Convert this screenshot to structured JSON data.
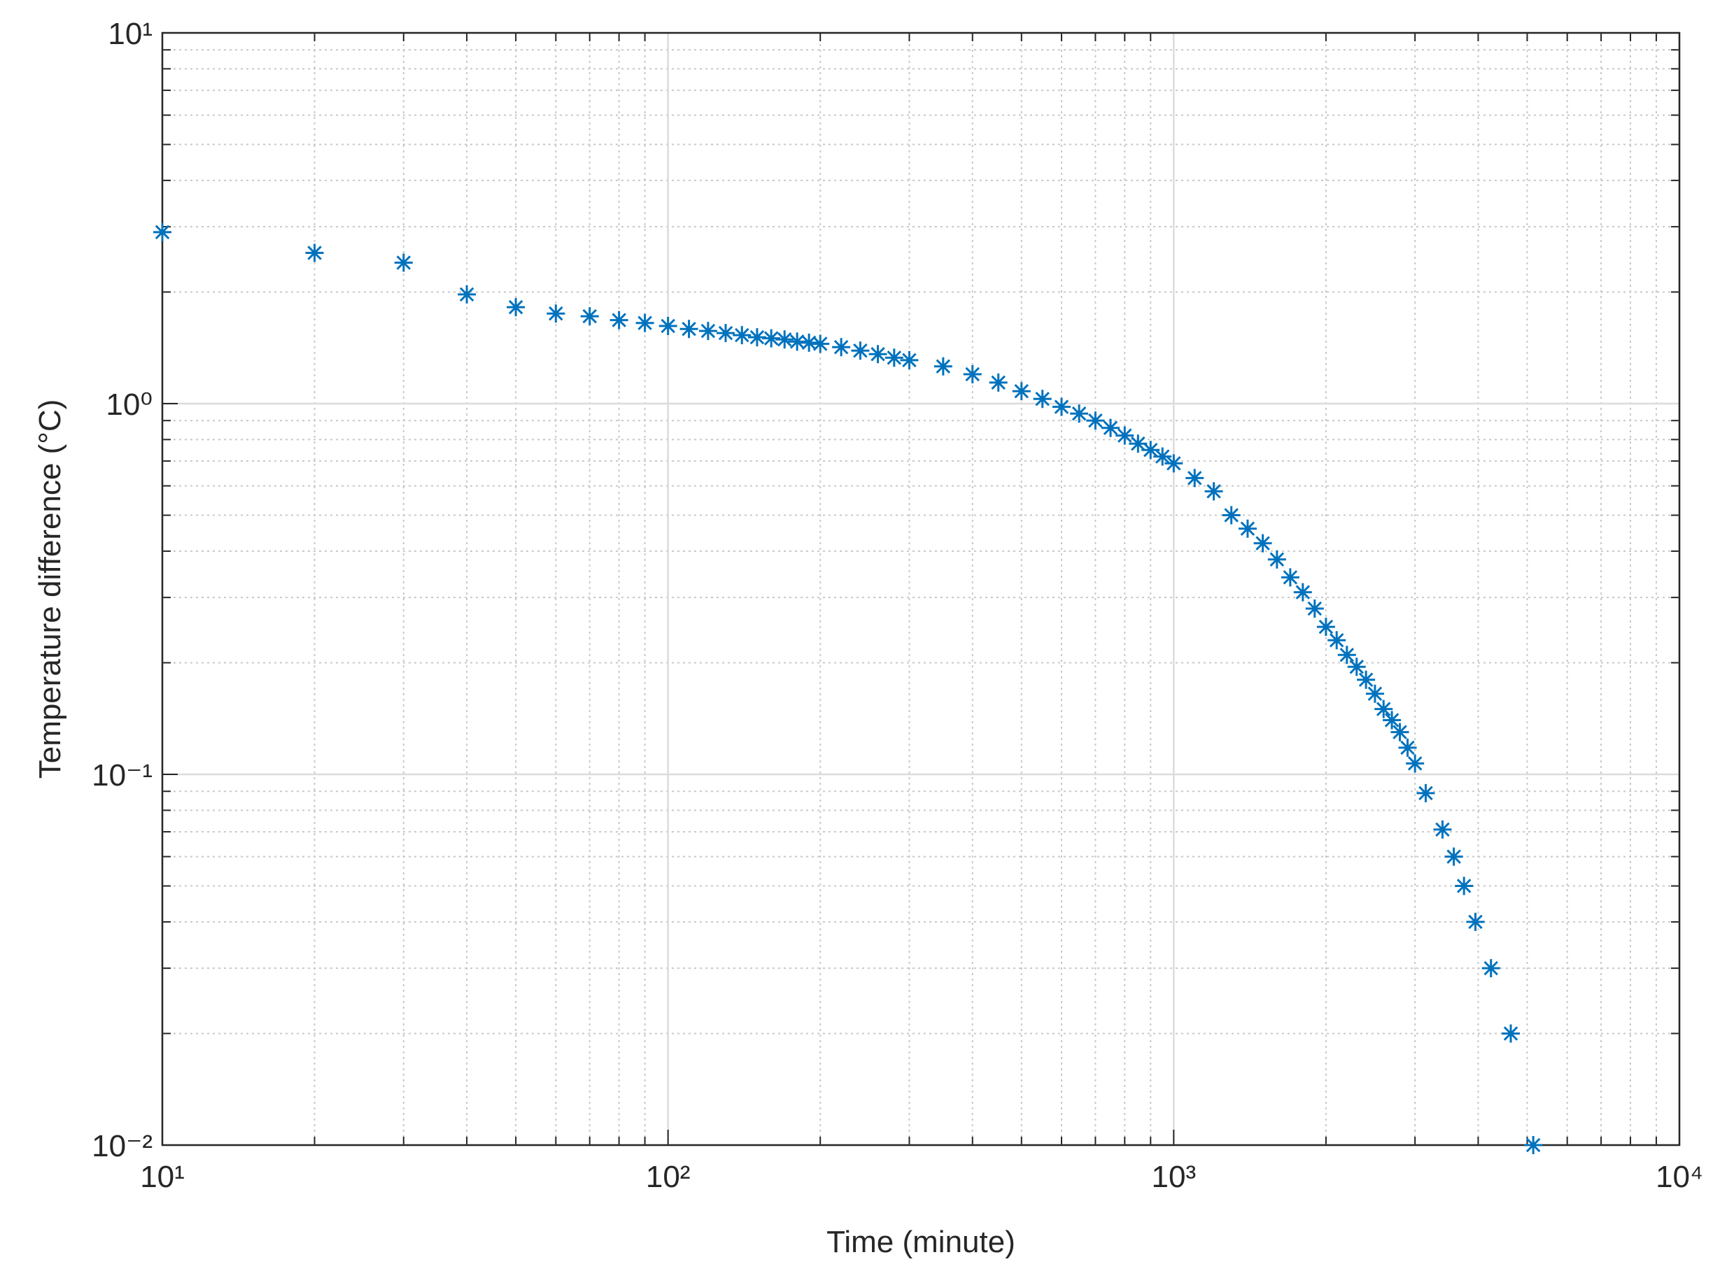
{
  "chart_data": {
    "type": "scatter",
    "x_label": "Time (minute)",
    "y_label": "Temperature difference (°C)",
    "x_log": true,
    "y_log": true,
    "grid": true,
    "minor_grid": true,
    "marker": "asterisk",
    "color": "#0072bd",
    "xlim": [
      10,
      10000
    ],
    "xticks": [
      {
        "value": 10,
        "label": "10¹"
      },
      {
        "value": 100,
        "label": "10²"
      },
      {
        "value": 1000,
        "label": "10³"
      },
      {
        "value": 10000,
        "label": "10⁴"
      }
    ],
    "ylim": [
      0.01,
      10
    ],
    "yticks": [
      {
        "value": 0.01,
        "label": "10⁻²"
      },
      {
        "value": 0.1,
        "label": "10⁻¹"
      },
      {
        "value": 1,
        "label": "10⁰"
      },
      {
        "value": 10,
        "label": "10¹"
      }
    ],
    "x": [
      10,
      20,
      30,
      40,
      50,
      60,
      70,
      80,
      90,
      100,
      110,
      120,
      130,
      140,
      150,
      160,
      170,
      180,
      190,
      200,
      220,
      240,
      260,
      280,
      300,
      350,
      400,
      450,
      500,
      550,
      600,
      650,
      700,
      750,
      800,
      850,
      900,
      950,
      1000,
      1100,
      1200,
      1300,
      1400,
      1500,
      1600,
      1700,
      1800,
      1900,
      2000,
      2100,
      2200,
      2300,
      2400,
      2500,
      2600,
      2700,
      2800,
      2900,
      3000,
      3150,
      3400,
      3580,
      3750,
      3950,
      4240,
      4640,
      5140
    ],
    "values": [
      2.9,
      2.55,
      2.4,
      1.97,
      1.82,
      1.75,
      1.72,
      1.68,
      1.65,
      1.62,
      1.59,
      1.57,
      1.55,
      1.53,
      1.51,
      1.5,
      1.49,
      1.47,
      1.46,
      1.45,
      1.42,
      1.39,
      1.36,
      1.33,
      1.31,
      1.26,
      1.2,
      1.14,
      1.08,
      1.03,
      0.98,
      0.94,
      0.9,
      0.86,
      0.82,
      0.78,
      0.75,
      0.72,
      0.69,
      0.63,
      0.58,
      0.5,
      0.46,
      0.42,
      0.38,
      0.34,
      0.31,
      0.28,
      0.25,
      0.23,
      0.21,
      0.195,
      0.18,
      0.165,
      0.15,
      0.14,
      0.13,
      0.118,
      0.107,
      0.089,
      0.071,
      0.06,
      0.05,
      0.04,
      0.03,
      0.02,
      0.01
    ]
  }
}
